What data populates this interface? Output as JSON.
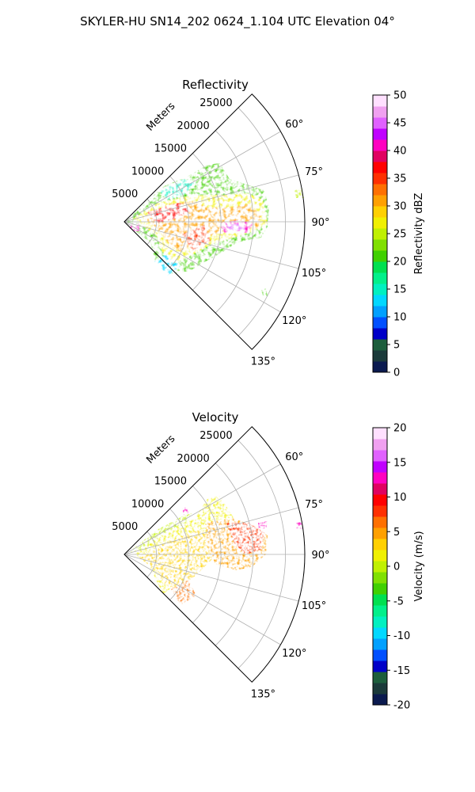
{
  "title": "SKYLER-HU  SN14_202  0624_1.104 UTC Elevation 04°",
  "colors": {
    "background": "#ffffff",
    "axis": "#000000",
    "grid": "#b0b0b0"
  },
  "chart_data": [
    {
      "type": "heatmap",
      "projection": "polar-sector",
      "title": "Reflectivity",
      "radial_label": "Meters",
      "radial_ticks": [
        5000,
        10000,
        15000,
        20000,
        25000
      ],
      "rlim": [
        0,
        28000
      ],
      "angle_range_deg": [
        45,
        135
      ],
      "angle_tick_labels": [
        "60°",
        "75°",
        "90°",
        "105°",
        "120°",
        "135°"
      ],
      "grid": true,
      "colorbar": {
        "label": "Reflectivity dBZ",
        "min": 0,
        "max": 50,
        "ticks": [
          0,
          5,
          10,
          15,
          20,
          25,
          30,
          35,
          40,
          45,
          50
        ],
        "colors": [
          "#0b1a4f",
          "#1b3a3a",
          "#1d5e3c",
          "#0000c8",
          "#0050ff",
          "#00a0ff",
          "#00d8ff",
          "#00f0c0",
          "#00f08a",
          "#00e050",
          "#40d000",
          "#80e000",
          "#c0f000",
          "#f0f000",
          "#ffd000",
          "#ffa000",
          "#ff7000",
          "#ff3000",
          "#ff0000",
          "#e00060",
          "#ff00c0",
          "#c000ff",
          "#e060ff",
          "#f0a0f0",
          "#ffe0ff"
        ]
      }
    },
    {
      "type": "heatmap",
      "projection": "polar-sector",
      "title": "Velocity",
      "radial_label": "Meters",
      "radial_ticks": [
        5000,
        10000,
        15000,
        20000,
        25000
      ],
      "rlim": [
        0,
        28000
      ],
      "angle_range_deg": [
        45,
        135
      ],
      "angle_tick_labels": [
        "60°",
        "75°",
        "90°",
        "105°",
        "120°",
        "135°"
      ],
      "grid": true,
      "colorbar": {
        "label": "Velocity (m/s)",
        "min": -20,
        "max": 20,
        "ticks": [
          -20,
          -15,
          -10,
          -5,
          0,
          5,
          10,
          15,
          20
        ],
        "colors": [
          "#0b1a4f",
          "#1b3a3a",
          "#1d5e3c",
          "#0000c8",
          "#0050ff",
          "#00a0ff",
          "#00d8ff",
          "#00f0c0",
          "#00f08a",
          "#00e050",
          "#40d000",
          "#80e000",
          "#c0f000",
          "#f0f000",
          "#ffd000",
          "#ffa000",
          "#ff7000",
          "#ff3000",
          "#ff0000",
          "#e00060",
          "#ff00c0",
          "#c000ff",
          "#e060ff",
          "#f0a0f0",
          "#ffe0ff"
        ]
      }
    }
  ]
}
